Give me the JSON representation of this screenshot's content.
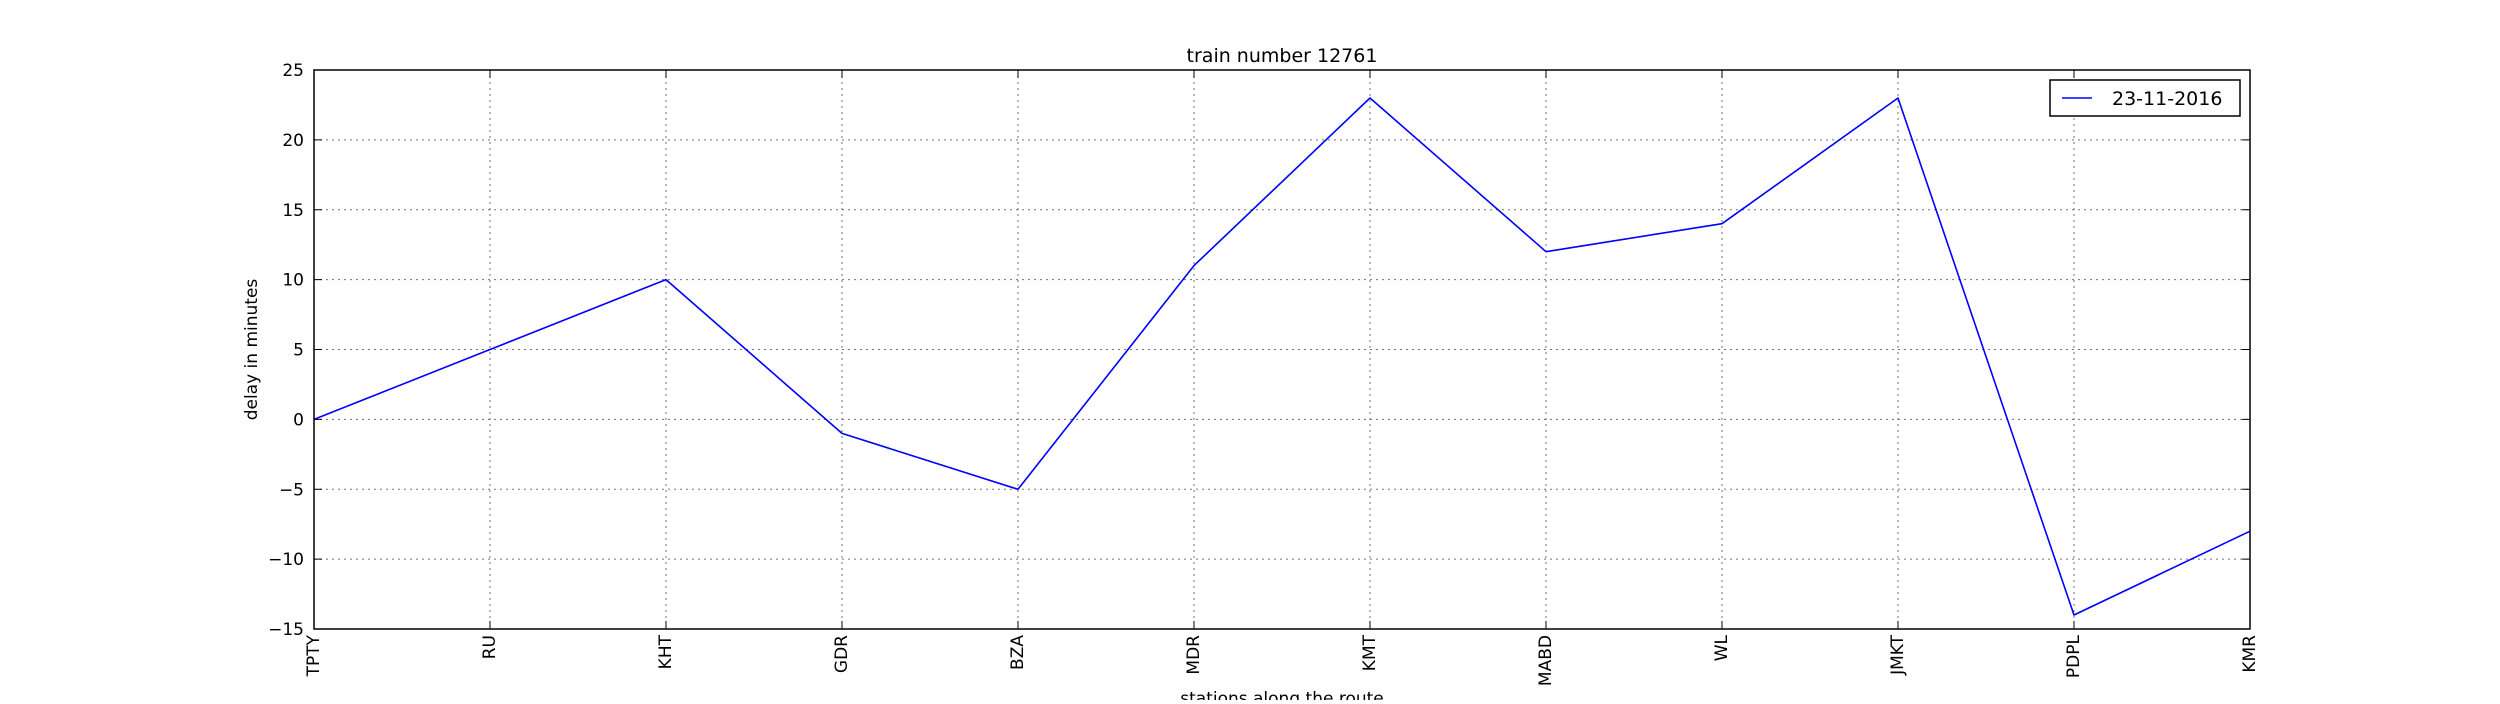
{
  "chart_data": {
    "type": "line",
    "title": "train number 12761",
    "xlabel": "stations along the route",
    "ylabel": "delay in minutes",
    "categories": [
      "TPTY",
      "RU",
      "KHT",
      "GDR",
      "BZA",
      "MDR",
      "KMT",
      "MABD",
      "WL",
      "JMKT",
      "PDPL",
      "KMR"
    ],
    "series": [
      {
        "name": "23-11-2016",
        "color": "#0000ff",
        "values": [
          0,
          5,
          10,
          -1,
          -5,
          11,
          23,
          12,
          14,
          23,
          -14,
          -8
        ]
      }
    ],
    "ylim": [
      -15,
      25
    ],
    "yticks": [
      "−15",
      "−10",
      "−5",
      "0",
      "5",
      "10",
      "15",
      "20",
      "25"
    ],
    "grid": true,
    "legend_position": "top-right"
  }
}
